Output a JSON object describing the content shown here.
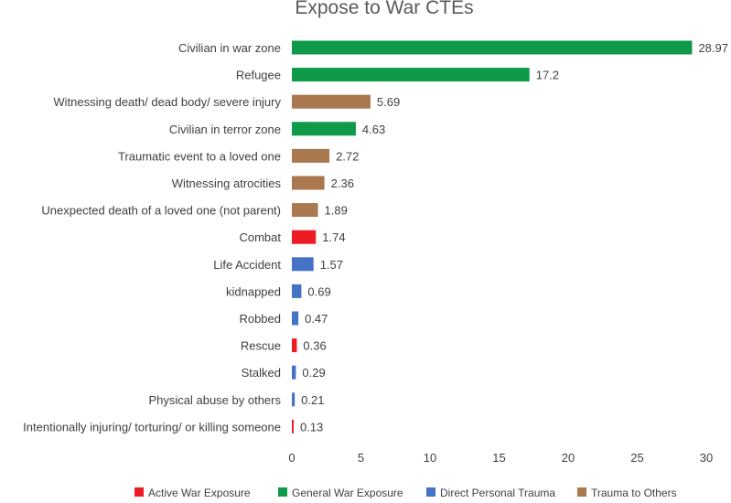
{
  "chart_data": {
    "type": "bar",
    "orientation": "horizontal",
    "title": "Expose to War CTEs",
    "xlabel": "",
    "ylabel": "",
    "xlim": [
      0,
      30
    ],
    "x_ticks": [
      0,
      5,
      10,
      15,
      20,
      25,
      30
    ],
    "grid": false,
    "legend_position": "bottom",
    "series": [
      {
        "name": "Active War Exposure",
        "color": "#ED1C24"
      },
      {
        "name": "General War Exposure",
        "color": "#0E9A48"
      },
      {
        "name": "Direct Personal Trauma",
        "color": "#4472C4"
      },
      {
        "name": "Trauma to Others",
        "color": "#A9784F"
      }
    ],
    "bars": [
      {
        "label": "Civilian in war zone",
        "value": 28.97,
        "value_label": "28.97",
        "series": "General War Exposure"
      },
      {
        "label": "Refugee",
        "value": 17.2,
        "value_label": "17.2",
        "series": "General War Exposure"
      },
      {
        "label": "Witnessing death/ dead body/ severe injury",
        "value": 5.69,
        "value_label": "5.69",
        "series": "Trauma to Others"
      },
      {
        "label": "Civilian in terror zone",
        "value": 4.63,
        "value_label": "4.63",
        "series": "General War Exposure"
      },
      {
        "label": "Traumatic event to a loved one",
        "value": 2.72,
        "value_label": "2.72",
        "series": "Trauma to Others"
      },
      {
        "label": "Witnessing atrocities",
        "value": 2.36,
        "value_label": "2.36",
        "series": "Trauma to Others"
      },
      {
        "label": "Unexpected death of a loved one (not parent)",
        "value": 1.89,
        "value_label": "1.89",
        "series": "Trauma to Others"
      },
      {
        "label": "Combat",
        "value": 1.74,
        "value_label": "1.74",
        "series": "Active War Exposure"
      },
      {
        "label": "Life Accident",
        "value": 1.57,
        "value_label": "1.57",
        "series": "Direct Personal Trauma"
      },
      {
        "label": "kidnapped",
        "value": 0.69,
        "value_label": "0.69",
        "series": "Direct Personal Trauma"
      },
      {
        "label": "Robbed",
        "value": 0.47,
        "value_label": "0.47",
        "series": "Direct Personal Trauma"
      },
      {
        "label": "Rescue",
        "value": 0.36,
        "value_label": "0.36",
        "series": "Active War Exposure"
      },
      {
        "label": "Stalked",
        "value": 0.29,
        "value_label": "0.29",
        "series": "Direct Personal Trauma"
      },
      {
        "label": "Physical abuse by others",
        "value": 0.21,
        "value_label": "0.21",
        "series": "Direct Personal Trauma"
      },
      {
        "label": "Intentionally injuring/ torturing/ or killing someone",
        "value": 0.13,
        "value_label": "0.13",
        "series": "Active War Exposure"
      }
    ]
  }
}
